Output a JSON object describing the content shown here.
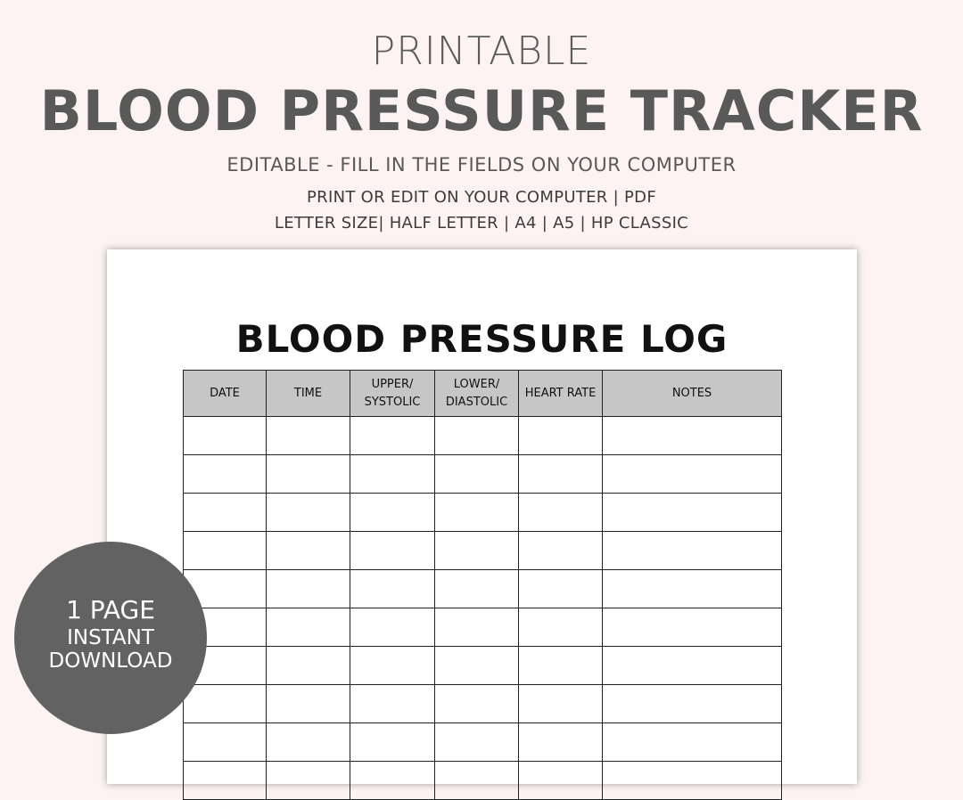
{
  "header": {
    "pretitle": "PRINTABLE",
    "title": "BLOOD PRESSURE TRACKER",
    "subtitle": "EDITABLE - FILL IN THE FIELDS ON YOUR COMPUTER",
    "line1": "PRINT OR EDIT ON YOUR COMPUTER | PDF",
    "line2": "LETTER SIZE| HALF LETTER | A4 | A5 | HP CLASSIC"
  },
  "sheet": {
    "title": "BLOOD PRESSURE LOG",
    "columns": [
      "DATE",
      "TIME",
      "UPPER/ SYSTOLIC",
      "LOWER/ DIASTOLIC",
      "HEART RATE",
      "NOTES"
    ]
  },
  "badge": {
    "line1": "1 PAGE",
    "line2": "INSTANT",
    "line3": "DOWNLOAD"
  },
  "colors": {
    "background": "#fcf3f2",
    "text": "#595959",
    "badge": "#626262",
    "header_fill": "#c6c6c6"
  }
}
